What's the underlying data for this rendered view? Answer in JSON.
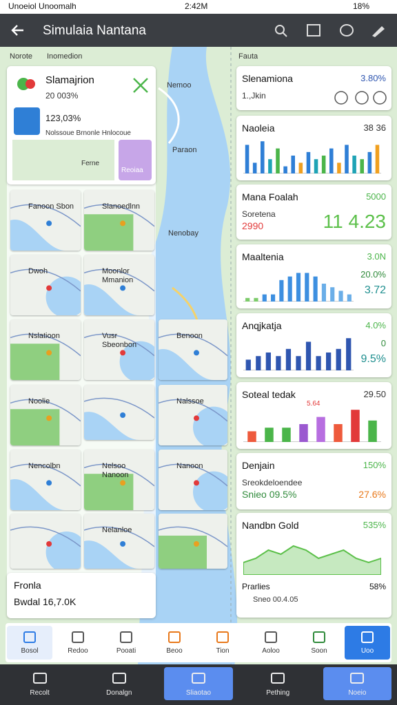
{
  "status_bar": {
    "carrier": "Unoeiol Unoomalh",
    "time": "2:42M",
    "battery": "18%"
  },
  "app_bar": {
    "title": "Simulaia Nantana"
  },
  "map_labels": [
    "Norote",
    "Inomedion",
    "Fauta",
    "Nemoo",
    "Paraon",
    "Nenobay"
  ],
  "summary_card": {
    "title": "Slamajrion",
    "subtitle": "20 003%",
    "value": "123,03%",
    "caption": "Nolssoue Brnonle Hnlocoue",
    "map_label": "Ferne",
    "badge": "Reoiaa"
  },
  "tiles": [
    "Fanoon Sbon",
    "Slanoedlnn",
    "Dwoh",
    "Moonlor Mmanion",
    "Nslatioon",
    "Vusr Sbeonbon",
    "Benoon",
    "Noolie",
    "Nalssoe",
    "Nencolbn",
    "Nelsoo Nanoon",
    "Nanoon",
    "Nelanloe"
  ],
  "footer_card": {
    "title": "Fronla",
    "value": "Bwdal 16,7.0K"
  },
  "cards": [
    {
      "title": "Slenamiona",
      "value": "3.80%",
      "sub": "1.,Jkin"
    },
    {
      "title": "Naoleia",
      "value": "38 36",
      "chart": {
        "type": "bar",
        "ylim": [
          0,
          10
        ],
        "values": [
          8,
          3,
          9,
          4,
          7,
          2,
          5,
          3,
          6,
          4,
          5,
          7,
          3,
          8,
          5,
          4,
          6,
          8
        ],
        "colors": [
          "#2f7fd6",
          "#2f7fd6",
          "#2f7fd6",
          "#1fa3b5",
          "#4bb54a",
          "#2f7fd6",
          "#2f7fd6",
          "#f0a020",
          "#2f7fd6",
          "#1fa3b5",
          "#4bb54a",
          "#2f7fd6",
          "#f0a020",
          "#2f7fd6",
          "#1fa3b5",
          "#4bb54a",
          "#2f7fd6",
          "#f0a020"
        ]
      }
    },
    {
      "title": "Mana Foalah",
      "value": "5000",
      "sub": "Soretena",
      "left": "2990",
      "right": "11 4.23"
    },
    {
      "title": "Maaltenia",
      "value": "3.0N",
      "stat1": "20.0%",
      "stat2": "3.72",
      "chart": {
        "type": "bar",
        "ylim": [
          0,
          10
        ],
        "values": [
          1,
          1,
          2,
          2,
          6,
          7,
          8,
          8,
          7,
          5,
          4,
          3,
          2
        ],
        "colors": [
          "#7ccb6a",
          "#7ccb6a",
          "#3d8fe0",
          "#3d8fe0",
          "#3d8fe0",
          "#3d8fe0",
          "#3d8fe0",
          "#3d8fe0",
          "#3d8fe0",
          "#6aaee8",
          "#6aaee8",
          "#6aaee8",
          "#6aaee8"
        ]
      }
    },
    {
      "title": "Anqjkatja",
      "value": "4.0%",
      "stat1": "0",
      "stat2": "9.5%",
      "chart": {
        "type": "bar",
        "ylim": [
          0,
          10
        ],
        "values": [
          3,
          4,
          5,
          4,
          6,
          4,
          8,
          4,
          5,
          6,
          9
        ],
        "colors": [
          "#2f56b0",
          "#2f56b0",
          "#2f56b0",
          "#2f56b0",
          "#2f56b0",
          "#2f56b0",
          "#2f56b0",
          "#2f56b0",
          "#2f56b0",
          "#2f56b0",
          "#2f56b0"
        ]
      }
    },
    {
      "title": "Soteal tedak",
      "value": "29.50",
      "sub": "5.64",
      "chart": {
        "type": "bar",
        "ylim": [
          0,
          10
        ],
        "values": [
          3,
          4,
          4,
          5,
          7,
          5,
          9,
          6
        ],
        "colors": [
          "#ee5a3c",
          "#4bb54a",
          "#4bb54a",
          "#9b59d0",
          "#b76ee0",
          "#ee5a3c",
          "#e23a3a",
          "#4bb54a"
        ]
      }
    },
    {
      "title": "Denjain",
      "value": "150%",
      "sub": "Sreokdeloendee",
      "left": "Snieo 09.5%",
      "right": "27.6%"
    },
    {
      "title": "Nandbn Gold",
      "value": "535%",
      "footer_title": "Prarlies",
      "footer_value": "58%",
      "footer_sub": "Sneo 00.4.05",
      "chart": {
        "type": "area",
        "ylim": [
          0,
          10
        ],
        "values": [
          3,
          4,
          6,
          5,
          7,
          6,
          4,
          5,
          6,
          4,
          3,
          4
        ],
        "color": "#5cc04a"
      }
    }
  ],
  "tabs": [
    "Bosol",
    "Redoo",
    "Pooati",
    "Beoo",
    "Tion",
    "Aoloo",
    "Soon",
    "Uoo"
  ],
  "nav": [
    "Recolt",
    "Donalgn",
    "Sliaotao",
    "Pething",
    "Noeio"
  ]
}
